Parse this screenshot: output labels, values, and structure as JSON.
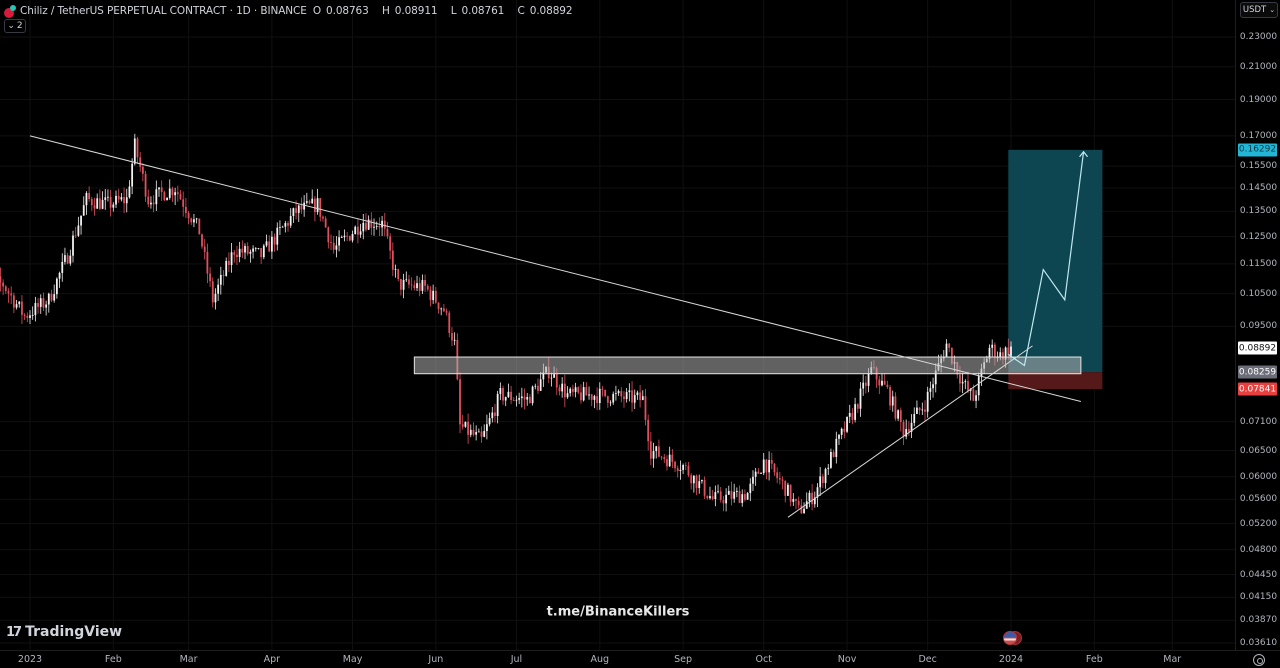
{
  "legend": {
    "symbol": "Chiliz / TetherUS PERPETUAL CONTRACT · 1D · BINANCE",
    "open_label": "O",
    "open": "0.08763",
    "high_label": "H",
    "high": "0.08911",
    "low_label": "L",
    "low": "0.08761",
    "close_label": "C",
    "close": "0.08892",
    "indicators_collapsed_count": "2"
  },
  "price_axis": {
    "currency": "USDT",
    "ticks": [
      "0.23000",
      "0.21000",
      "0.19000",
      "0.17000",
      "0.15500",
      "0.14500",
      "0.13500",
      "0.12500",
      "0.11500",
      "0.10500",
      "0.09500",
      "0.07100",
      "0.06500",
      "0.06000",
      "0.05600",
      "0.05200",
      "0.04800",
      "0.04450",
      "0.04150",
      "0.03870",
      "0.03610"
    ],
    "tags": {
      "target": "0.16292",
      "last_price": "0.08892",
      "entry": "0.08259",
      "stop": "0.07841"
    }
  },
  "time_axis": {
    "labels": [
      "2023",
      "Feb",
      "Mar",
      "Apr",
      "May",
      "Jun",
      "Jul",
      "Aug",
      "Sep",
      "Oct",
      "Nov",
      "Dec",
      "2024",
      "Feb",
      "Mar"
    ]
  },
  "branding": {
    "logo_text": "TradingView",
    "watermark": "t.me/BinanceKillers"
  },
  "colors": {
    "background": "#000000",
    "up_candle": "#f2f2f2",
    "down_candle": "#e0515e",
    "target_zone": "#0e4a55",
    "stop_zone": "#5a1a1a",
    "target_tag": "#22b5d6",
    "entry_tag": "#6b6e78",
    "stop_tag": "#e8403f",
    "last_tag": "#ffffff"
  },
  "chart_data": {
    "type": "candlestick",
    "title": "Chiliz / TetherUS PERPETUAL CONTRACT · 1D · BINANCE",
    "xlabel": "",
    "ylabel": "USDT",
    "y_scale": "log",
    "ylim": [
      0.0355,
      0.24
    ],
    "x_range": [
      "2022-12-12",
      "2024-03-20"
    ],
    "grid": true,
    "last_ohlc": {
      "open": 0.08763,
      "high": 0.08911,
      "low": 0.08761,
      "close": 0.08892
    },
    "price_path": [
      [
        "2022-12-12",
        0.11
      ],
      [
        "2022-12-22",
        0.108
      ],
      [
        "2022-12-30",
        0.098
      ],
      [
        "2023-01-08",
        0.103
      ],
      [
        "2023-01-15",
        0.118
      ],
      [
        "2023-01-22",
        0.14
      ],
      [
        "2023-01-30",
        0.138
      ],
      [
        "2023-02-06",
        0.14
      ],
      [
        "2023-02-09",
        0.165
      ],
      [
        "2023-02-14",
        0.14
      ],
      [
        "2023-02-24",
        0.145
      ],
      [
        "2023-03-05",
        0.127
      ],
      [
        "2023-03-10",
        0.103
      ],
      [
        "2023-03-18",
        0.12
      ],
      [
        "2023-03-28",
        0.118
      ],
      [
        "2023-04-10",
        0.135
      ],
      [
        "2023-04-18",
        0.138
      ],
      [
        "2023-04-24",
        0.12
      ],
      [
        "2023-05-05",
        0.131
      ],
      [
        "2023-05-12",
        0.13
      ],
      [
        "2023-05-18",
        0.108
      ],
      [
        "2023-05-28",
        0.107
      ],
      [
        "2023-06-04",
        0.1
      ],
      [
        "2023-06-08",
        0.09
      ],
      [
        "2023-06-10",
        0.07
      ],
      [
        "2023-06-18",
        0.067
      ],
      [
        "2023-06-25",
        0.077
      ],
      [
        "2023-07-05",
        0.076
      ],
      [
        "2023-07-13",
        0.083
      ],
      [
        "2023-07-20",
        0.077
      ],
      [
        "2023-08-01",
        0.077
      ],
      [
        "2023-08-17",
        0.076
      ],
      [
        "2023-08-20",
        0.065
      ],
      [
        "2023-09-01",
        0.062
      ],
      [
        "2023-09-12",
        0.056
      ],
      [
        "2023-09-25",
        0.057
      ],
      [
        "2023-10-01",
        0.063
      ],
      [
        "2023-10-09",
        0.058
      ],
      [
        "2023-10-14",
        0.054
      ],
      [
        "2023-10-20",
        0.057
      ],
      [
        "2023-10-28",
        0.066
      ],
      [
        "2023-11-04",
        0.074
      ],
      [
        "2023-11-10",
        0.083
      ],
      [
        "2023-11-16",
        0.078
      ],
      [
        "2023-11-22",
        0.069
      ],
      [
        "2023-11-30",
        0.075
      ],
      [
        "2023-12-08",
        0.09
      ],
      [
        "2023-12-14",
        0.08
      ],
      [
        "2023-12-18",
        0.076
      ],
      [
        "2023-12-24",
        0.089
      ],
      [
        "2023-12-28",
        0.087
      ],
      [
        "2024-01-01",
        0.0889
      ]
    ],
    "drawings": {
      "descending_trendline": {
        "from": [
          "2023-01-01",
          0.17
        ],
        "to": [
          "2024-01-27",
          0.0755
        ]
      },
      "ascending_trendline": {
        "from": [
          "2023-10-10",
          0.053
        ],
        "to": [
          "2024-01-09",
          0.0895
        ]
      },
      "resistance_zone": {
        "from": "2023-05-24",
        "to": "2024-01-27",
        "top": 0.0865,
        "bottom": 0.0822
      },
      "long_position": {
        "start": "2023-12-31",
        "end": "2024-02-04",
        "entry": 0.08259,
        "target": 0.16292,
        "stop": 0.07841
      },
      "projection_path": [
        [
          "2023-12-31",
          0.0872
        ],
        [
          "2024-01-06",
          0.0843
        ],
        [
          "2024-01-13",
          0.113
        ],
        [
          "2024-01-21",
          0.103
        ],
        [
          "2024-01-28",
          0.162
        ]
      ]
    }
  }
}
